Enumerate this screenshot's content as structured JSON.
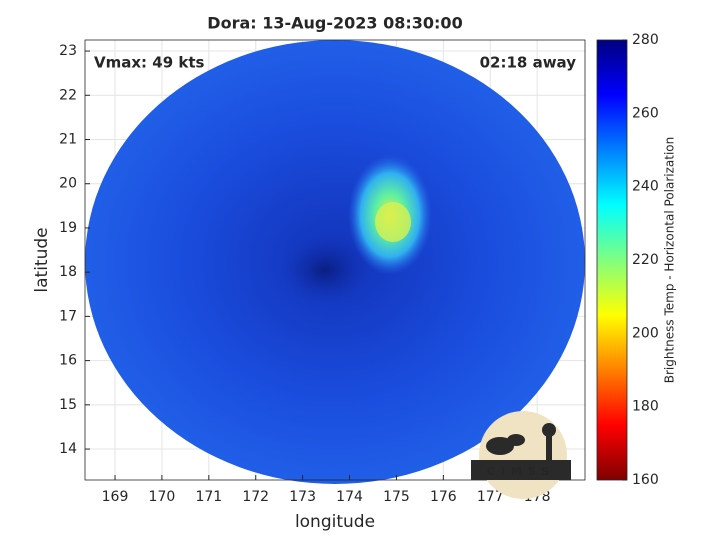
{
  "chart_data": {
    "type": "image",
    "title": "Dora: 13-Aug-2023 08:30:00",
    "annotations": [
      "Vmax: 49 kts",
      "02:18 away"
    ],
    "x_label": "longitude",
    "y_label": "latitude",
    "xlim": [
      168.36,
      179.02
    ],
    "xticks": [
      169,
      170,
      171,
      172,
      173,
      174,
      175,
      176,
      177,
      178
    ],
    "ylim": [
      13.3,
      23.25
    ],
    "yticks": [
      14,
      15,
      16,
      17,
      18,
      19,
      20,
      21,
      22,
      23
    ],
    "grid": true,
    "colorbar": {
      "label": "Brightness Temp - Horizontal Polarization",
      "clim": [
        160,
        280
      ],
      "ticks": [
        160,
        180,
        200,
        220,
        240,
        260,
        280
      ],
      "colormap": [
        "#800000",
        "#ff0000",
        "#ff8000",
        "#ffff00",
        "#80ff80",
        "#00ffff",
        "#0080ff",
        "#0000ff",
        "#000080"
      ]
    },
    "logo": "CIMSS"
  }
}
